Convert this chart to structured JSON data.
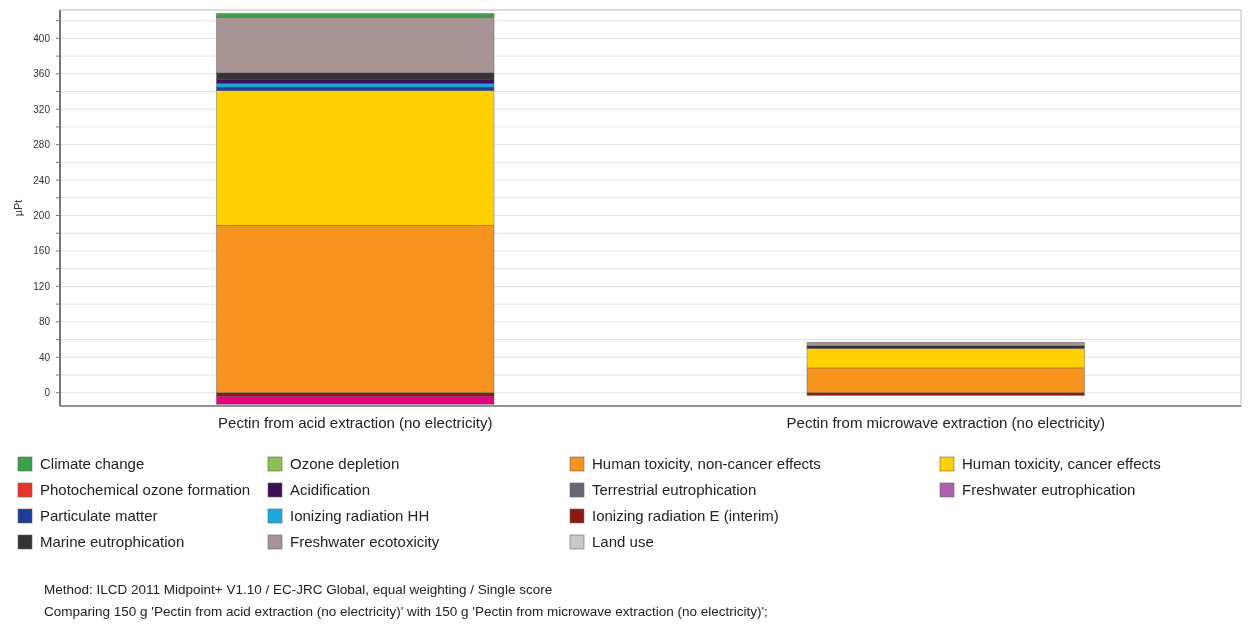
{
  "chart_data": {
    "type": "bar",
    "stacked": true,
    "ylabel": "µPt",
    "categories": [
      "Pectin from acid extraction (no electricity)",
      "Pectin from microwave extraction (no electricity)"
    ],
    "ylim": [
      -15,
      432
    ],
    "yticks": [
      0,
      {
        "value": 20,
        "label": null
      },
      40,
      {
        "value": 60,
        "label": null
      },
      80,
      {
        "value": 100,
        "label": null
      },
      120,
      {
        "value": 140,
        "label": null
      },
      160,
      {
        "value": 180,
        "label": null
      },
      200,
      {
        "value": 220,
        "label": null
      },
      240,
      {
        "value": 260,
        "label": null
      },
      280,
      {
        "value": 300,
        "label": null
      },
      320,
      {
        "value": 340,
        "label": null
      },
      360,
      {
        "value": 380,
        "label": null
      },
      400,
      {
        "value": 420,
        "label": null
      }
    ],
    "grid": "y",
    "legend": "bottom",
    "series": [
      {
        "name": "Ionizing radiation E (interim)",
        "color": "#8b1a12",
        "values": [
          -4,
          -3
        ]
      },
      {
        "color": "#e6007e",
        "values": [
          -9,
          0
        ]
      },
      {
        "name": "Human toxicity, non-cancer effects",
        "color": "#f7941d",
        "values": [
          189,
          28
        ]
      },
      {
        "name": "Human toxicity, cancer effects",
        "color": "#ffd100",
        "values": [
          152,
          22
        ]
      },
      {
        "name": "Particulate matter",
        "color": "#1f3c99",
        "values": [
          4,
          0
        ]
      },
      {
        "name": "Ionizing radiation HH",
        "color": "#19a7e0",
        "values": [
          4,
          0
        ]
      },
      {
        "name": "Acidification",
        "color": "#3b1054",
        "values": [
          5,
          0
        ]
      },
      {
        "name": "Marine eutrophication",
        "color": "#333333",
        "values": [
          7,
          3
        ]
      },
      {
        "name": "Freshwater ecotoxicity",
        "color": "#a89494",
        "values": [
          63,
          4
        ]
      },
      {
        "name": "Climate change",
        "color": "#3aa24a",
        "values": [
          4,
          0
        ]
      },
      {
        "name": "Ozone depletion",
        "color": "#8cc152",
        "values": [
          0,
          0
        ]
      },
      {
        "name": "Photochemical ozone formation",
        "color": "#e8312a",
        "values": [
          0,
          0
        ]
      },
      {
        "name": "Terrestrial eutrophication",
        "color": "#6b6570",
        "values": [
          0,
          0
        ]
      },
      {
        "name": "Freshwater eutrophication",
        "color": "#b05fb0",
        "values": [
          0,
          0
        ]
      },
      {
        "name": "Land use",
        "color": "#c8c8c8",
        "values": [
          0,
          0
        ]
      }
    ],
    "annotations": [
      "Method: ILCD 2011 Midpoint+ V1.10 / EC-JRC Global, equal weighting / Single score",
      "Comparing 150 g 'Pectin from acid extraction (no electricity)' with 150 g 'Pectin from microwave extraction (no electricity)';"
    ]
  }
}
